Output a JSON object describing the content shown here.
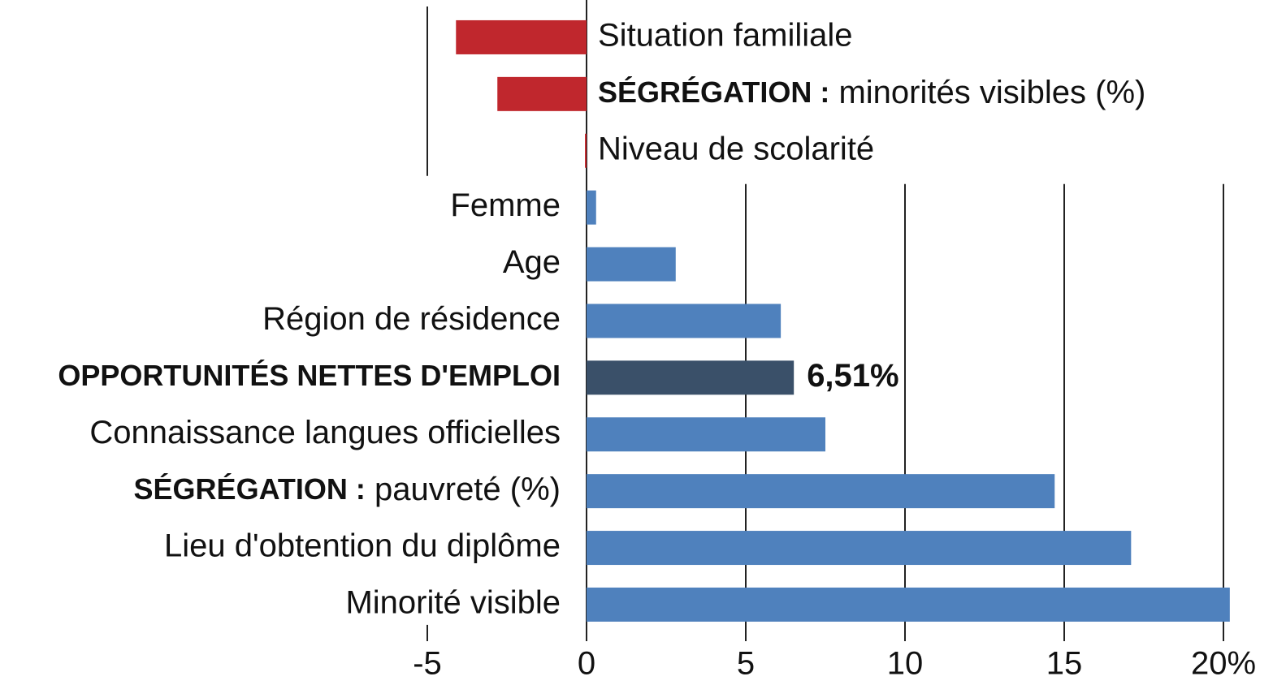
{
  "chart_data": {
    "type": "bar",
    "orientation": "horizontal",
    "categories": [
      "Situation familiale",
      "SÉGRÉGATION : minorités visibles (%)",
      "Niveau de scolarité",
      "Femme",
      "Age",
      "Région de résidence",
      "OPPORTUNITÉS NETTES D'EMPLOI",
      "Connaissance langues officielles",
      "SÉGRÉGATION : pauvreté (%)",
      "Lieu d'obtention du diplôme",
      "Minorité visible"
    ],
    "values": [
      -4.1,
      -2.8,
      -0.05,
      0.3,
      2.8,
      6.1,
      6.51,
      7.5,
      14.7,
      17.1,
      20.2
    ],
    "value_labels": [
      null,
      null,
      null,
      null,
      null,
      null,
      "6,51%",
      null,
      null,
      null,
      null
    ],
    "colors": [
      "#c0272d",
      "#c0272d",
      "#c0272d",
      "#4f81bd",
      "#4f81bd",
      "#4f81bd",
      "#3a5069",
      "#4f81bd",
      "#4f81bd",
      "#4f81bd",
      "#4f81bd"
    ],
    "xlim": [
      -5,
      21.5
    ],
    "xticks": [
      -5,
      0,
      5,
      10,
      15,
      {
        "value": 20,
        "label": "20%"
      }
    ],
    "grid": true
  }
}
